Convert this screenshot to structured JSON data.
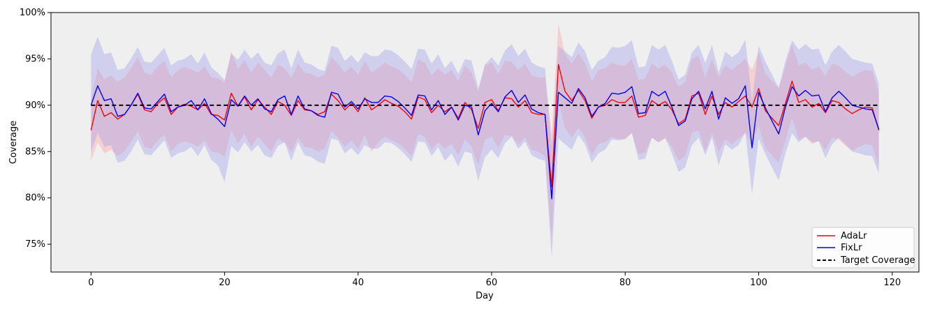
{
  "chart_data": {
    "type": "line",
    "xlabel": "Day",
    "ylabel": "Coverage",
    "xlim": [
      -6,
      124
    ],
    "ylim": [
      72,
      100
    ],
    "x_ticks": [
      0,
      20,
      40,
      60,
      80,
      100,
      120
    ],
    "x_tick_labels": [
      "0",
      "20",
      "40",
      "60",
      "80",
      "100",
      "120"
    ],
    "y_ticks": [
      75,
      80,
      85,
      90,
      95,
      100
    ],
    "y_tick_labels": [
      "75%",
      "80%",
      "85%",
      "90%",
      "95%",
      "100%"
    ],
    "background_color": "#efefef",
    "grid": false,
    "legend_position": "lower-right",
    "target": 90,
    "x": [
      0,
      1,
      2,
      3,
      4,
      5,
      6,
      7,
      8,
      9,
      10,
      11,
      12,
      13,
      14,
      15,
      16,
      17,
      18,
      19,
      20,
      21,
      22,
      23,
      24,
      25,
      26,
      27,
      28,
      29,
      30,
      31,
      32,
      33,
      34,
      35,
      36,
      37,
      38,
      39,
      40,
      41,
      42,
      43,
      44,
      45,
      46,
      47,
      48,
      49,
      50,
      51,
      52,
      53,
      54,
      55,
      56,
      57,
      58,
      59,
      60,
      61,
      62,
      63,
      64,
      65,
      66,
      67,
      68,
      69,
      70,
      71,
      72,
      73,
      74,
      75,
      76,
      77,
      78,
      79,
      80,
      81,
      82,
      83,
      84,
      85,
      86,
      87,
      88,
      89,
      90,
      91,
      92,
      93,
      94,
      95,
      96,
      97,
      98,
      99,
      100,
      101,
      102,
      103,
      104,
      105,
      106,
      107,
      108,
      109,
      110,
      111,
      112,
      113,
      114,
      115,
      116,
      117,
      118
    ],
    "series": [
      {
        "name": "AdaLr",
        "color": "#ff0000",
        "band_color": "#ff9999",
        "values": [
          87.3,
          90.5,
          88.8,
          89.2,
          88.5,
          89.0,
          90.0,
          91.2,
          89.5,
          89.3,
          90.2,
          90.8,
          89.0,
          89.8,
          90.1,
          89.9,
          89.5,
          90.2,
          89.0,
          88.9,
          88.4,
          91.3,
          89.9,
          90.9,
          89.5,
          90.6,
          89.8,
          89.0,
          90.4,
          90.0,
          88.9,
          90.5,
          89.5,
          89.4,
          89.0,
          89.3,
          91.2,
          90.5,
          89.5,
          90.2,
          89.3,
          90.8,
          89.5,
          90.0,
          90.6,
          90.2,
          89.9,
          89.3,
          88.5,
          90.9,
          90.6,
          89.2,
          90.0,
          89.3,
          89.8,
          88.6,
          90.3,
          89.5,
          87.5,
          90.3,
          90.6,
          89.4,
          90.8,
          90.7,
          89.8,
          90.5,
          89.2,
          89.0,
          89.0,
          81.2,
          94.4,
          91.5,
          90.5,
          91.6,
          90.5,
          88.6,
          89.8,
          90.0,
          90.6,
          90.3,
          90.3,
          91.0,
          88.7,
          88.9,
          90.5,
          90.0,
          90.4,
          89.5,
          88.0,
          88.5,
          91.0,
          91.3,
          89.0,
          91.0,
          89.0,
          90.3,
          89.8,
          90.4,
          91.0,
          89.8,
          91.8,
          89.4,
          88.6,
          87.8,
          90.2,
          92.6,
          90.3,
          90.6,
          89.8,
          90.2,
          89.2,
          90.5,
          90.3,
          89.6,
          89.1,
          89.5,
          89.8,
          89.7,
          87.3
        ],
        "lower": [
          84.0,
          86.0,
          84.8,
          85.2,
          84.5,
          85.0,
          86.0,
          87.2,
          85.5,
          85.3,
          86.2,
          86.8,
          85.0,
          85.8,
          86.1,
          85.9,
          85.5,
          86.2,
          85.0,
          84.9,
          84.4,
          87.3,
          85.9,
          86.9,
          85.5,
          86.6,
          85.8,
          85.0,
          86.4,
          86.0,
          84.9,
          86.5,
          85.5,
          85.4,
          85.0,
          85.3,
          87.2,
          86.5,
          85.5,
          86.2,
          85.3,
          86.8,
          85.0,
          86.0,
          86.6,
          86.2,
          85.9,
          85.3,
          84.5,
          86.9,
          86.6,
          85.2,
          86.0,
          85.3,
          85.8,
          84.6,
          86.3,
          85.5,
          83.5,
          86.3,
          86.6,
          85.4,
          86.8,
          86.7,
          85.8,
          86.5,
          85.2,
          85.0,
          84.5,
          75.5,
          90.5,
          87.5,
          86.5,
          87.6,
          86.5,
          84.6,
          85.8,
          86.0,
          86.6,
          86.3,
          86.3,
          87.0,
          84.7,
          84.9,
          86.5,
          86.0,
          86.4,
          85.5,
          84.0,
          84.5,
          87.0,
          87.3,
          85.0,
          87.0,
          85.0,
          86.3,
          85.8,
          86.4,
          87.0,
          85.8,
          87.8,
          85.4,
          84.6,
          83.8,
          86.2,
          88.6,
          86.3,
          86.6,
          85.8,
          86.2,
          85.2,
          86.5,
          86.3,
          85.6,
          85.1,
          85.5,
          85.8,
          85.7,
          83.3
        ],
        "upper": [
          90.6,
          94.0,
          92.8,
          93.2,
          92.5,
          93.0,
          94.0,
          95.2,
          93.5,
          93.3,
          94.2,
          94.8,
          93.0,
          93.8,
          94.1,
          93.9,
          93.5,
          94.2,
          93.0,
          92.9,
          92.4,
          95.8,
          93.9,
          94.9,
          93.5,
          94.6,
          93.8,
          93.0,
          94.4,
          94.0,
          92.9,
          94.5,
          93.5,
          93.4,
          93.0,
          93.3,
          95.2,
          94.5,
          93.5,
          94.2,
          93.3,
          94.8,
          93.5,
          94.0,
          94.6,
          94.2,
          93.9,
          93.3,
          92.5,
          94.9,
          94.6,
          93.2,
          94.0,
          93.3,
          93.8,
          92.6,
          94.3,
          93.5,
          91.5,
          94.3,
          94.6,
          93.4,
          94.8,
          94.7,
          93.8,
          94.5,
          93.2,
          93.0,
          93.0,
          86.8,
          98.8,
          95.5,
          94.5,
          95.6,
          94.5,
          92.6,
          93.8,
          94.0,
          94.6,
          94.3,
          94.3,
          95.0,
          92.7,
          92.9,
          94.5,
          94.0,
          94.4,
          93.5,
          92.0,
          92.5,
          95.0,
          95.3,
          93.0,
          95.0,
          93.0,
          94.3,
          93.8,
          94.4,
          95.0,
          93.8,
          95.8,
          93.4,
          92.6,
          91.8,
          94.2,
          96.6,
          94.3,
          94.6,
          93.8,
          94.2,
          93.2,
          94.5,
          94.3,
          93.6,
          93.1,
          93.5,
          93.8,
          93.7,
          91.3
        ]
      },
      {
        "name": "FixLr",
        "color": "#0000ee",
        "band_color": "#9999ee",
        "values": [
          90.0,
          92.1,
          90.5,
          90.7,
          88.8,
          89.0,
          90.0,
          91.3,
          89.7,
          89.6,
          90.4,
          91.2,
          89.3,
          89.8,
          90.0,
          90.5,
          89.5,
          90.7,
          89.1,
          88.5,
          87.7,
          90.6,
          89.9,
          91.0,
          90.0,
          90.7,
          89.6,
          89.3,
          90.6,
          91.0,
          89.0,
          91.0,
          89.6,
          89.4,
          88.9,
          88.7,
          91.4,
          91.2,
          89.8,
          90.4,
          89.6,
          90.7,
          90.3,
          90.3,
          91.0,
          90.9,
          90.4,
          89.7,
          88.9,
          91.1,
          91.0,
          89.5,
          90.5,
          89.0,
          89.8,
          88.4,
          90.0,
          89.8,
          86.8,
          89.4,
          90.2,
          89.3,
          90.9,
          91.6,
          90.3,
          91.1,
          89.6,
          89.2,
          89.0,
          79.9,
          91.4,
          90.8,
          90.2,
          91.8,
          90.8,
          88.8,
          89.8,
          90.2,
          91.3,
          91.2,
          91.4,
          92.0,
          89.1,
          89.2,
          91.5,
          91.0,
          91.5,
          89.8,
          87.8,
          88.3,
          90.7,
          91.5,
          89.6,
          91.5,
          88.5,
          90.8,
          90.2,
          90.7,
          92.1,
          85.4,
          91.4,
          89.7,
          88.3,
          86.9,
          89.8,
          92.0,
          91.0,
          91.6,
          91.0,
          91.1,
          89.3,
          90.8,
          91.5,
          90.8,
          90.0,
          89.8,
          89.6,
          89.5,
          87.4
        ],
        "lower": [
          85.0,
          87.0,
          85.5,
          85.7,
          83.8,
          84.0,
          85.0,
          86.3,
          84.7,
          84.6,
          85.4,
          86.2,
          84.3,
          84.8,
          85.0,
          85.5,
          84.5,
          85.7,
          84.1,
          83.5,
          81.7,
          85.6,
          84.9,
          86.0,
          85.0,
          85.7,
          84.6,
          84.3,
          85.6,
          86.0,
          84.0,
          86.0,
          84.6,
          84.4,
          83.9,
          83.7,
          86.4,
          86.2,
          84.8,
          85.4,
          84.6,
          85.7,
          85.3,
          85.3,
          86.0,
          85.9,
          85.4,
          84.7,
          83.9,
          86.1,
          86.0,
          84.5,
          85.5,
          84.0,
          84.8,
          83.4,
          85.0,
          84.8,
          81.8,
          84.4,
          85.2,
          84.3,
          85.9,
          86.6,
          85.3,
          86.1,
          84.6,
          84.2,
          84.0,
          73.5,
          86.4,
          85.8,
          85.2,
          86.8,
          85.8,
          83.8,
          84.8,
          85.2,
          86.3,
          86.2,
          86.4,
          87.0,
          84.1,
          84.2,
          86.5,
          86.0,
          86.5,
          84.8,
          82.8,
          83.3,
          85.7,
          86.5,
          84.6,
          86.5,
          83.5,
          85.8,
          85.2,
          85.7,
          87.1,
          80.4,
          86.4,
          84.7,
          83.3,
          81.9,
          84.8,
          87.0,
          86.0,
          86.6,
          86.0,
          86.1,
          84.3,
          85.8,
          86.5,
          85.8,
          85.0,
          84.8,
          84.6,
          84.5,
          82.6
        ],
        "upper": [
          95.5,
          97.4,
          95.5,
          95.7,
          93.8,
          94.0,
          95.0,
          96.3,
          94.7,
          94.6,
          95.4,
          96.2,
          94.3,
          94.8,
          95.0,
          95.5,
          94.5,
          95.7,
          94.1,
          93.5,
          92.7,
          95.6,
          94.9,
          96.0,
          95.0,
          95.7,
          94.6,
          94.3,
          95.6,
          96.0,
          94.0,
          96.0,
          94.6,
          94.4,
          93.9,
          93.7,
          96.4,
          96.2,
          94.8,
          95.4,
          94.6,
          95.7,
          95.3,
          95.3,
          96.0,
          95.9,
          95.4,
          94.7,
          93.9,
          96.1,
          96.0,
          94.5,
          95.5,
          94.0,
          94.8,
          93.4,
          95.0,
          94.8,
          91.8,
          94.4,
          95.2,
          94.3,
          95.9,
          96.6,
          95.3,
          96.1,
          94.6,
          94.2,
          94.0,
          85.5,
          96.4,
          95.8,
          95.2,
          96.8,
          95.8,
          93.8,
          94.8,
          95.2,
          96.3,
          96.2,
          96.4,
          97.0,
          94.1,
          94.2,
          96.5,
          96.0,
          96.5,
          94.8,
          92.8,
          93.3,
          95.7,
          96.5,
          94.6,
          96.5,
          93.5,
          95.8,
          95.2,
          95.7,
          97.1,
          90.4,
          96.4,
          94.7,
          93.3,
          91.9,
          94.8,
          97.0,
          96.0,
          96.6,
          96.0,
          96.1,
          94.3,
          95.8,
          96.5,
          95.8,
          95.0,
          94.8,
          94.6,
          94.5,
          92.3
        ]
      },
      {
        "name": "Target Coverage",
        "color": "#000000",
        "style": "dashed",
        "x_range": [
          0,
          118
        ],
        "value": 90
      }
    ]
  }
}
